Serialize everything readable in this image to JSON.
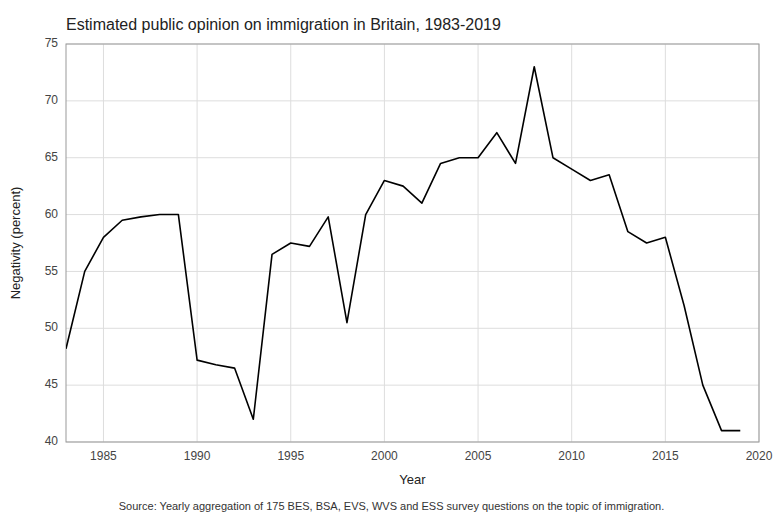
{
  "chart_data": {
    "type": "line",
    "title": "Estimated public opinion on immigration in Britain, 1983-2019",
    "xlabel": "Year",
    "ylabel": "Negativity (percent)",
    "caption": "Source: Yearly aggregation of 175 BES, BSA, EVS, WVS and ESS survey questions on the topic of immigration.",
    "x": [
      1983,
      1984,
      1985,
      1986,
      1987,
      1988,
      1989,
      1990,
      1991,
      1992,
      1993,
      1994,
      1995,
      1996,
      1997,
      1998,
      1999,
      2000,
      2001,
      2002,
      2003,
      2004,
      2005,
      2006,
      2007,
      2008,
      2009,
      2010,
      2011,
      2012,
      2013,
      2014,
      2015,
      2016,
      2017,
      2018,
      2019
    ],
    "values": [
      48.2,
      55.0,
      58.0,
      59.5,
      59.8,
      60.0,
      60.0,
      47.2,
      46.8,
      46.5,
      42.0,
      56.5,
      57.5,
      57.2,
      59.8,
      50.5,
      60.0,
      63.0,
      62.5,
      61.0,
      64.5,
      65.0,
      65.0,
      67.2,
      64.5,
      73.0,
      65.0,
      64.0,
      63.0,
      63.5,
      58.5,
      57.5,
      58.0,
      52.0,
      45.0,
      41.0,
      41.0
    ],
    "color": "#000000",
    "xlim": [
      1983,
      2020
    ],
    "ylim": [
      40,
      75
    ],
    "xticks": [
      1985,
      1990,
      1995,
      2000,
      2005,
      2010,
      2015,
      2020
    ],
    "yticks": [
      40,
      45,
      50,
      55,
      60,
      65,
      70,
      75
    ],
    "grid": true
  }
}
